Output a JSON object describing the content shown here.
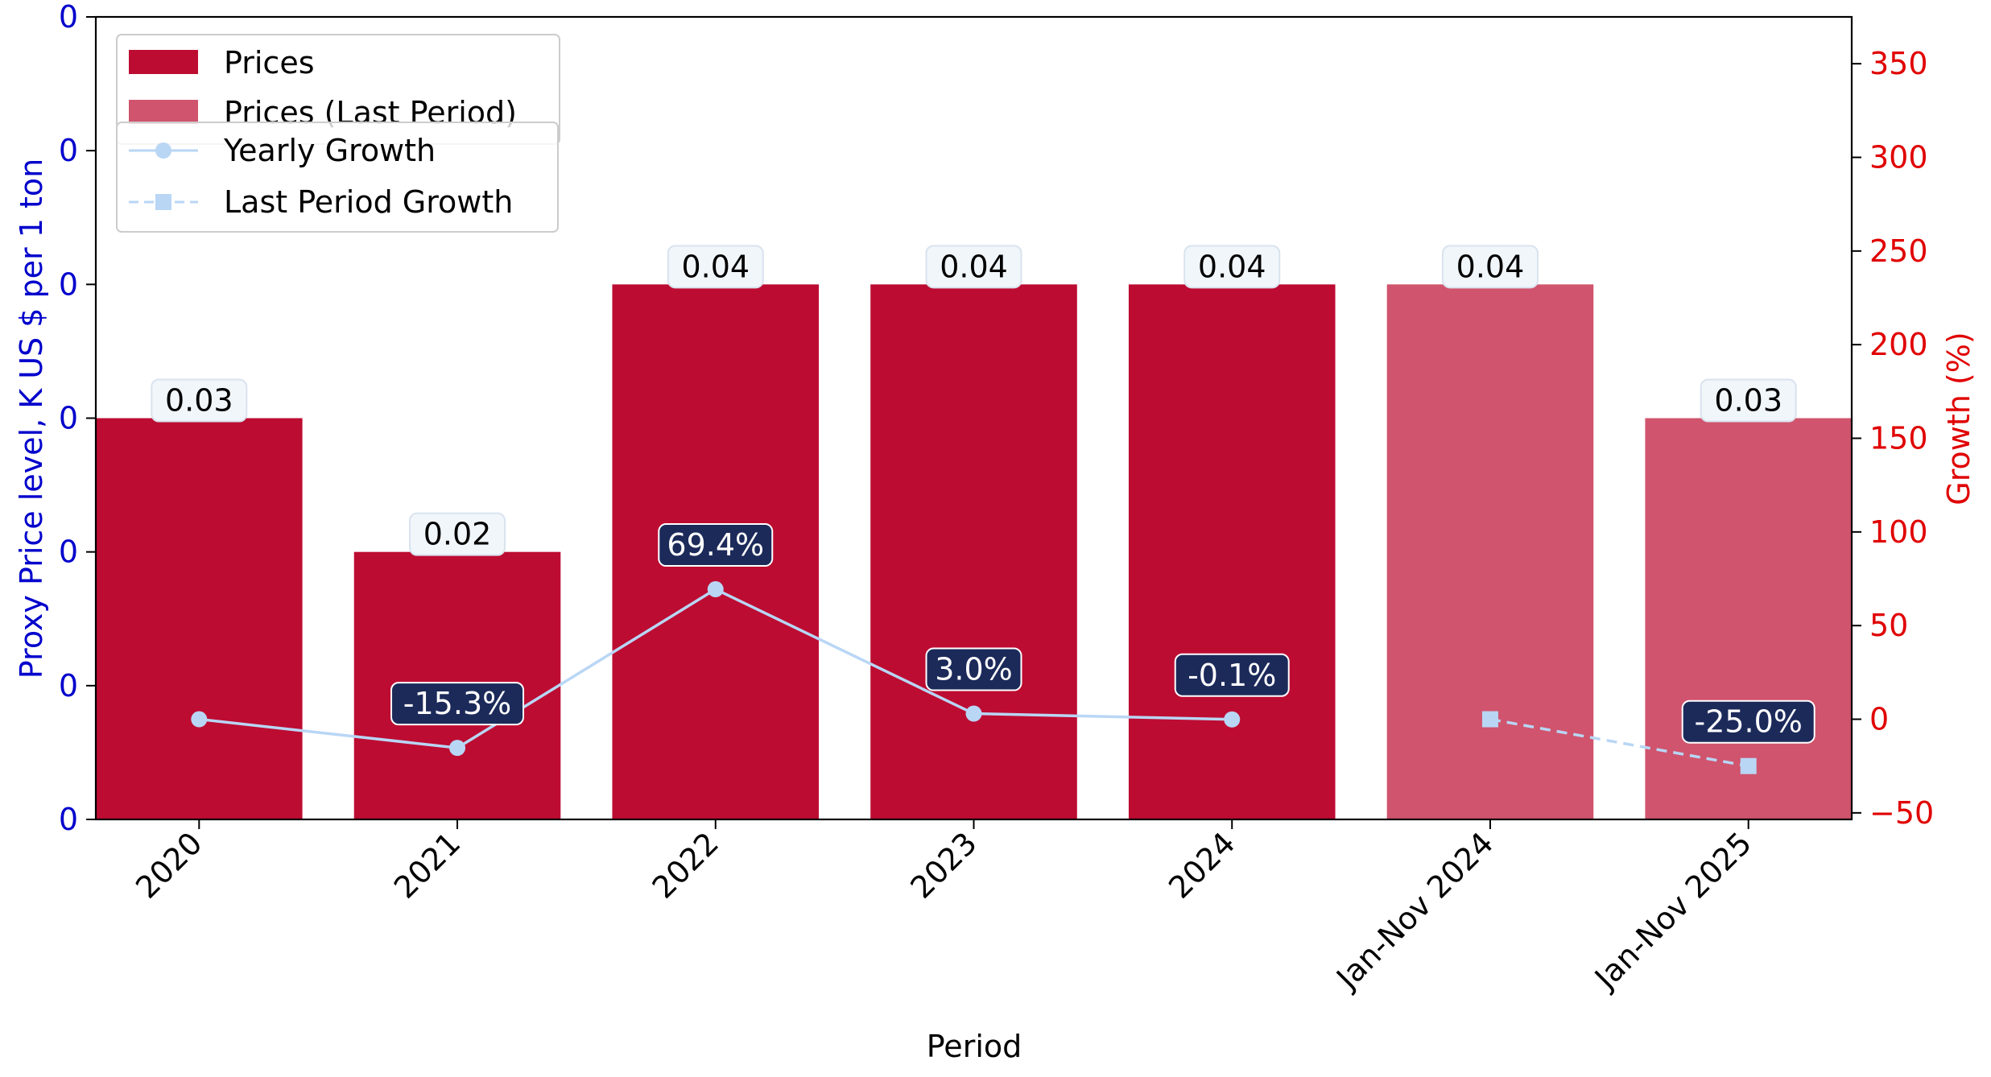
{
  "chart_data": {
    "type": "bar",
    "title": "",
    "xlabel": "Period",
    "ylabel_left": "Proxy Price level, K US $ per 1 ton",
    "ylabel_right": "Growth (%)",
    "categories": [
      "2020",
      "2021",
      "2022",
      "2023",
      "2024",
      "Jan-Nov 2024",
      "Jan-Nov 2025"
    ],
    "bars": {
      "name": "Prices",
      "categories": [
        "2020",
        "2021",
        "2022",
        "2023",
        "2024"
      ],
      "values": [
        0.03,
        0.02,
        0.04,
        0.04,
        0.04
      ],
      "labels": [
        "0.03",
        "0.02",
        "0.04",
        "0.04",
        "0.04"
      ],
      "color": "#bd0c32"
    },
    "bars_last": {
      "name": "Prices (Last Period)",
      "categories": [
        "Jan-Nov 2024",
        "Jan-Nov 2025"
      ],
      "values": [
        0.04,
        0.03
      ],
      "labels": [
        "0.04",
        "0.03"
      ],
      "color": "#d0546d"
    },
    "yearly_growth": {
      "name": "Yearly Growth",
      "categories": [
        "2020",
        "2021",
        "2022",
        "2023",
        "2024"
      ],
      "values": [
        0,
        -15.3,
        69.4,
        3.0,
        -0.1
      ],
      "labels": [
        "",
        "-15.3%",
        "69.4%",
        "3.0%",
        "-0.1%"
      ],
      "color": "#b9d6f5"
    },
    "last_period_growth": {
      "name": "Last Period Growth",
      "categories": [
        "Jan-Nov 2024",
        "Jan-Nov 2025"
      ],
      "values": [
        0,
        -25.0
      ],
      "labels": [
        "",
        "-25.0%"
      ],
      "color": "#b9d6f5"
    },
    "left_axis": {
      "range": [
        0,
        0.06
      ],
      "ticks": [
        0,
        0.01,
        0.02,
        0.03,
        0.04,
        0.05,
        0.06
      ],
      "tick_labels": [
        "0",
        "0",
        "0",
        "0",
        "0",
        "0",
        "0"
      ],
      "color": "#0000cc"
    },
    "right_axis": {
      "range": [
        -53.5,
        375
      ],
      "ticks": [
        -50,
        0,
        50,
        100,
        150,
        200,
        250,
        300,
        350
      ],
      "tick_labels": [
        "−50",
        "0",
        "50",
        "100",
        "150",
        "200",
        "250",
        "300",
        "350"
      ],
      "color": "#e00000"
    },
    "legend_placement": "top-left",
    "grid": false
  }
}
